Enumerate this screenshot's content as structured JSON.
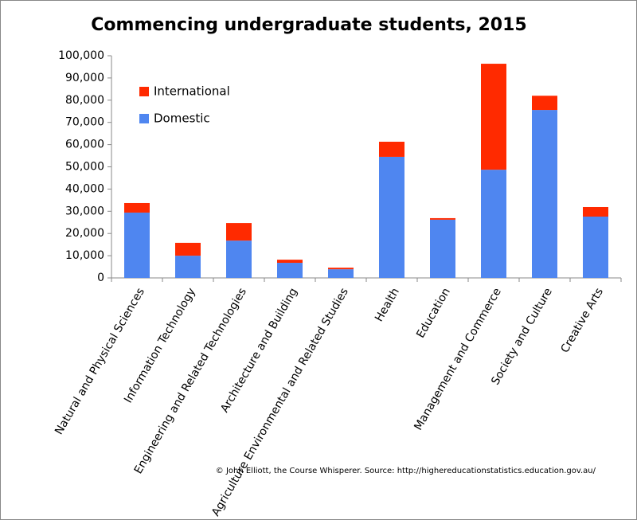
{
  "chart_data": {
    "type": "stacked-bar",
    "title": "Commencing undergraduate students, 2015",
    "categories": [
      "Natural and Physical Sciences",
      "Information Technology",
      "Engineering and Related Technologies",
      "Architecture and Building",
      "Agriculture Environmental and Related Studies",
      "Health",
      "Education",
      "Management and Commerce",
      "Society and Culture",
      "Creative Arts"
    ],
    "series": [
      {
        "name": "Domestic",
        "color": "#4f86f0",
        "values": [
          29400,
          10000,
          16800,
          6800,
          3900,
          54500,
          26200,
          48700,
          75600,
          27600
        ]
      },
      {
        "name": "International",
        "color": "#ff2a00",
        "values": [
          4300,
          5800,
          7900,
          1400,
          700,
          6800,
          700,
          47700,
          6400,
          4300
        ]
      }
    ],
    "ylim": [
      0,
      100000
    ],
    "yticks": [
      0,
      {
        "value": 10000,
        "label": "10,000"
      },
      {
        "value": 20000,
        "label": "20,000"
      },
      {
        "value": 30000,
        "label": "30,000"
      },
      {
        "value": 40000,
        "label": "40,000"
      },
      {
        "value": 50000,
        "label": "50,000"
      },
      {
        "value": 60000,
        "label": "60,000"
      },
      {
        "value": 70000,
        "label": "70,000"
      },
      {
        "value": 80000,
        "label": "80,000"
      },
      {
        "value": 90000,
        "label": "90,000"
      },
      {
        "value": 100000,
        "label": "100,000"
      }
    ],
    "grid": false,
    "legend": "top-left",
    "source": "© John Elliott, the Course Whisperer.  Source: http://highereducationstatistics.education.gov.au/"
  }
}
